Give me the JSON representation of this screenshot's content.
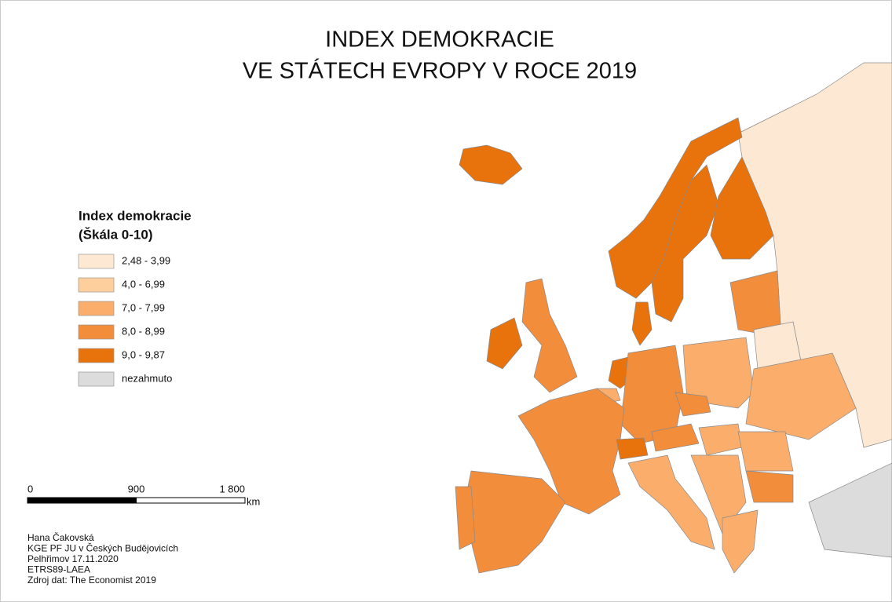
{
  "title": [
    "INDEX DEMOKRACIE",
    "VE STÁTECH EVROPY V ROCE 2019"
  ],
  "legend": {
    "title": [
      "Index demokracie",
      "(Škála 0-10)"
    ],
    "classes": [
      {
        "label": "2,48 - 3,99",
        "color": "#fde9d3"
      },
      {
        "label": "4,0 - 6,99",
        "color": "#fdcf9c"
      },
      {
        "label": "7,0 - 7,99",
        "color": "#fbae6c"
      },
      {
        "label": "8,0 - 8,99",
        "color": "#f28d3c"
      },
      {
        "label": "9,0 - 9,87",
        "color": "#e8720c"
      },
      {
        "label": "nezahmuto",
        "color": "#dcdcdc"
      }
    ]
  },
  "scale_bar": {
    "ticks": [
      0,
      900,
      {
        "value": 1800,
        "label": "1 800"
      }
    ],
    "unit": "km"
  },
  "credits": [
    "Hana Čakovská",
    "KGE PF JU v Českých Budějovicích",
    "Pelhřimov 17.11.2020",
    "ETRS89-LAEA",
    "Zdroj dat: The Economist 2019"
  ]
}
